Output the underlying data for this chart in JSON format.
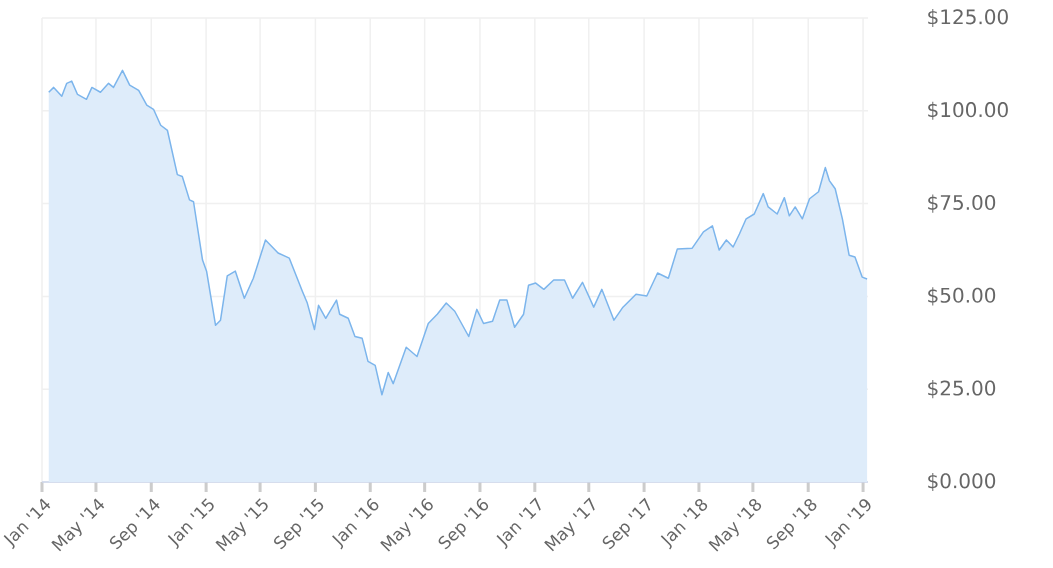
{
  "chart_data": {
    "type": "area",
    "color": "#7cb5ec",
    "grid": true,
    "xlim": [
      "2014-01-01",
      "2019-01-12"
    ],
    "ylim": [
      0,
      125
    ],
    "xticks": [
      {
        "value": "2014-01-01",
        "label": "Jan '14"
      },
      {
        "value": "2014-05-01",
        "label": "May '14"
      },
      {
        "value": "2014-09-01",
        "label": "Sep '14"
      },
      {
        "value": "2015-01-01",
        "label": "Jan '15"
      },
      {
        "value": "2015-05-01",
        "label": "May '15"
      },
      {
        "value": "2015-09-01",
        "label": "Sep '15"
      },
      {
        "value": "2016-01-01",
        "label": "Jan '16"
      },
      {
        "value": "2016-05-01",
        "label": "May '16"
      },
      {
        "value": "2016-09-01",
        "label": "Sep '16"
      },
      {
        "value": "2017-01-01",
        "label": "Jan '17"
      },
      {
        "value": "2017-05-01",
        "label": "May '17"
      },
      {
        "value": "2017-09-01",
        "label": "Sep '17"
      },
      {
        "value": "2018-01-01",
        "label": "Jan '18"
      },
      {
        "value": "2018-05-01",
        "label": "May '18"
      },
      {
        "value": "2018-09-01",
        "label": "Sep '18"
      },
      {
        "value": "2019-01-01",
        "label": "Jan '19"
      }
    ],
    "yticks": [
      {
        "value": 0,
        "label": "$0.000"
      },
      {
        "value": 25,
        "label": "$25.00"
      },
      {
        "value": 50,
        "label": "$50.00"
      },
      {
        "value": 75,
        "label": "$75.00"
      },
      {
        "value": 100,
        "label": "$100.00"
      },
      {
        "value": 125,
        "label": "$125.00"
      }
    ],
    "x": [
      "2014-01-16",
      "2014-01-27",
      "2014-02-14",
      "2014-02-25",
      "2014-03-08",
      "2014-03-21",
      "2014-04-10",
      "2014-04-22",
      "2014-05-11",
      "2014-05-29",
      "2014-06-09",
      "2014-06-29",
      "2014-07-15",
      "2014-08-04",
      "2014-08-22",
      "2014-09-06",
      "2014-09-22",
      "2014-10-07",
      "2014-10-29",
      "2014-11-09",
      "2014-11-25",
      "2014-12-04",
      "2014-12-24",
      "2015-01-02",
      "2015-01-22",
      "2015-02-02",
      "2015-02-17",
      "2015-03-07",
      "2015-03-27",
      "2015-04-16",
      "2015-05-13",
      "2015-06-10",
      "2015-07-05",
      "2015-08-03",
      "2015-08-14",
      "2015-08-30",
      "2015-09-08",
      "2015-09-24",
      "2015-10-18",
      "2015-10-25",
      "2015-11-13",
      "2015-11-28",
      "2015-12-14",
      "2015-12-27",
      "2016-01-12",
      "2016-01-27",
      "2016-02-10",
      "2016-02-21",
      "2016-03-21",
      "2016-04-14",
      "2016-05-09",
      "2016-05-29",
      "2016-06-18",
      "2016-07-07",
      "2016-08-07",
      "2016-08-25",
      "2016-09-09",
      "2016-09-29",
      "2016-10-15",
      "2016-10-31",
      "2016-11-17",
      "2016-12-07",
      "2016-12-18",
      "2017-01-03",
      "2017-01-21",
      "2017-02-12",
      "2017-03-08",
      "2017-03-26",
      "2017-04-17",
      "2017-05-12",
      "2017-05-30",
      "2017-06-26",
      "2017-07-16",
      "2017-08-14",
      "2017-09-07",
      "2017-10-01",
      "2017-10-25",
      "2017-11-14",
      "2017-12-17",
      "2018-01-11",
      "2018-01-31",
      "2018-02-15",
      "2018-03-03",
      "2018-03-18",
      "2018-04-01",
      "2018-04-16",
      "2018-05-04",
      "2018-05-24",
      "2018-06-04",
      "2018-06-24",
      "2018-07-10",
      "2018-07-21",
      "2018-08-03",
      "2018-08-19",
      "2018-09-04",
      "2018-09-24",
      "2018-10-09",
      "2018-10-18",
      "2018-10-31",
      "2018-11-16",
      "2018-12-01",
      "2018-12-14",
      "2018-12-30",
      "2019-01-10"
    ],
    "values": [
      105.0,
      106.3,
      103.9,
      107.4,
      108.0,
      104.4,
      103.1,
      106.3,
      105.0,
      107.4,
      106.3,
      110.9,
      106.9,
      105.5,
      101.5,
      100.4,
      96.1,
      94.7,
      82.8,
      82.3,
      76.0,
      75.5,
      59.8,
      56.8,
      42.2,
      43.6,
      55.5,
      56.8,
      49.5,
      54.9,
      65.2,
      61.7,
      60.3,
      51.4,
      48.2,
      41.1,
      47.6,
      44.1,
      49.0,
      45.2,
      44.1,
      39.2,
      38.7,
      32.5,
      31.4,
      23.5,
      29.5,
      26.5,
      36.3,
      33.8,
      42.7,
      45.2,
      48.2,
      46.0,
      39.2,
      46.5,
      42.7,
      43.3,
      49.0,
      49.0,
      41.7,
      45.2,
      53.0,
      53.6,
      51.9,
      54.4,
      54.4,
      49.5,
      53.8,
      47.1,
      51.9,
      43.6,
      47.1,
      50.6,
      50.1,
      56.3,
      54.9,
      62.8,
      63.0,
      67.4,
      69.0,
      62.5,
      65.2,
      63.3,
      66.8,
      70.9,
      72.2,
      77.7,
      74.1,
      72.2,
      76.6,
      71.7,
      74.1,
      70.9,
      76.3,
      78.2,
      84.7,
      81.2,
      79.0,
      70.9,
      61.1,
      60.6,
      55.2,
      54.7
    ]
  }
}
